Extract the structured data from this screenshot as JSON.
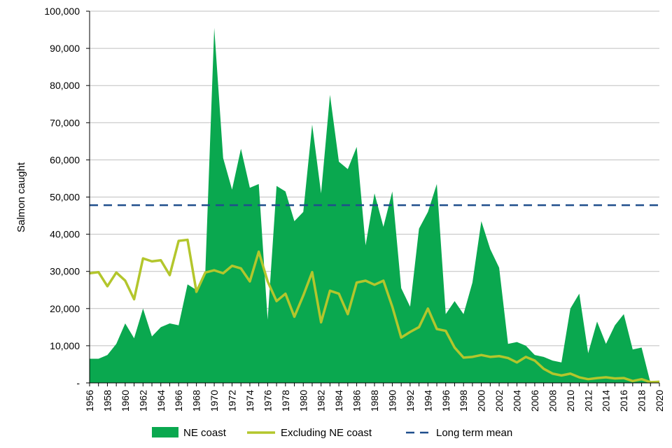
{
  "chart_data": {
    "type": "area",
    "title": "",
    "xlabel": "",
    "ylabel": "Salmon caught",
    "ylim": [
      0,
      100000
    ],
    "yticks": [
      0,
      10000,
      20000,
      30000,
      40000,
      50000,
      60000,
      70000,
      80000,
      90000,
      100000
    ],
    "ytick_labels": [
      "-",
      "10,000",
      "20,000",
      "30,000",
      "40,000",
      "50,000",
      "60,000",
      "70,000",
      "80,000",
      "90,000",
      "100,000"
    ],
    "xlim": [
      1956,
      2020
    ],
    "xtick_labels": [
      "1956",
      "1958",
      "1960",
      "1962",
      "1964",
      "1966",
      "1968",
      "1970",
      "1972",
      "1974",
      "1976",
      "1978",
      "1980",
      "1982",
      "1984",
      "1986",
      "1988",
      "1990",
      "1992",
      "1994",
      "1996",
      "1998",
      "2000",
      "2002",
      "2004",
      "2006",
      "2008",
      "2010",
      "2012",
      "2014",
      "2016",
      "2018",
      "2020"
    ],
    "grid": "horizontal",
    "legend_position": "bottom",
    "x": [
      1956,
      1957,
      1958,
      1959,
      1960,
      1961,
      1962,
      1963,
      1964,
      1965,
      1966,
      1967,
      1968,
      1969,
      1970,
      1971,
      1972,
      1973,
      1974,
      1975,
      1976,
      1977,
      1978,
      1979,
      1980,
      1981,
      1982,
      1983,
      1984,
      1985,
      1986,
      1987,
      1988,
      1989,
      1990,
      1991,
      1992,
      1993,
      1994,
      1995,
      1996,
      1997,
      1998,
      1999,
      2000,
      2001,
      2002,
      2003,
      2004,
      2005,
      2006,
      2007,
      2008,
      2009,
      2010,
      2011,
      2012,
      2013,
      2014,
      2015,
      2016,
      2017,
      2018,
      2019,
      2020
    ],
    "series": [
      {
        "name": "NE coast",
        "kind": "area",
        "color": "#0aa84f",
        "values": [
          6500,
          6500,
          7500,
          10500,
          16000,
          12000,
          20000,
          12500,
          15000,
          16000,
          15500,
          26500,
          25000,
          30000,
          95500,
          60500,
          52000,
          63000,
          52500,
          53500,
          17000,
          53000,
          51500,
          43500,
          46000,
          69500,
          51000,
          77500,
          59500,
          57500,
          63500,
          37000,
          51000,
          42000,
          51500,
          25500,
          20500,
          41500,
          46000,
          53500,
          18500,
          22000,
          18500,
          27000,
          43500,
          36000,
          31000,
          10500,
          11000,
          10000,
          7500,
          7000,
          6000,
          5500,
          20000,
          24000,
          8000,
          16500,
          10500,
          15500,
          18500,
          9000,
          9500,
          0,
          0
        ]
      },
      {
        "name": "Excluding NE coast",
        "kind": "line",
        "color": "#b3c62c",
        "values": [
          29500,
          29800,
          26000,
          29700,
          27500,
          22500,
          33500,
          32700,
          33000,
          29000,
          38200,
          38500,
          24500,
          29700,
          30300,
          29500,
          31500,
          30800,
          27300,
          35300,
          27300,
          22000,
          24000,
          17800,
          23500,
          29800,
          16300,
          24800,
          24000,
          18500,
          27000,
          27500,
          26400,
          27500,
          20500,
          12200,
          13700,
          15000,
          20000,
          14500,
          14000,
          9500,
          6800,
          7000,
          7500,
          7000,
          7200,
          6700,
          5500,
          7000,
          6000,
          3800,
          2500,
          2000,
          2500,
          1500,
          1000,
          1300,
          1500,
          1200,
          1300,
          500,
          1000,
          200,
          300
        ]
      },
      {
        "name": "Long term mean",
        "kind": "dashed-line",
        "color": "#1f4e8c",
        "value": 47800
      }
    ]
  }
}
